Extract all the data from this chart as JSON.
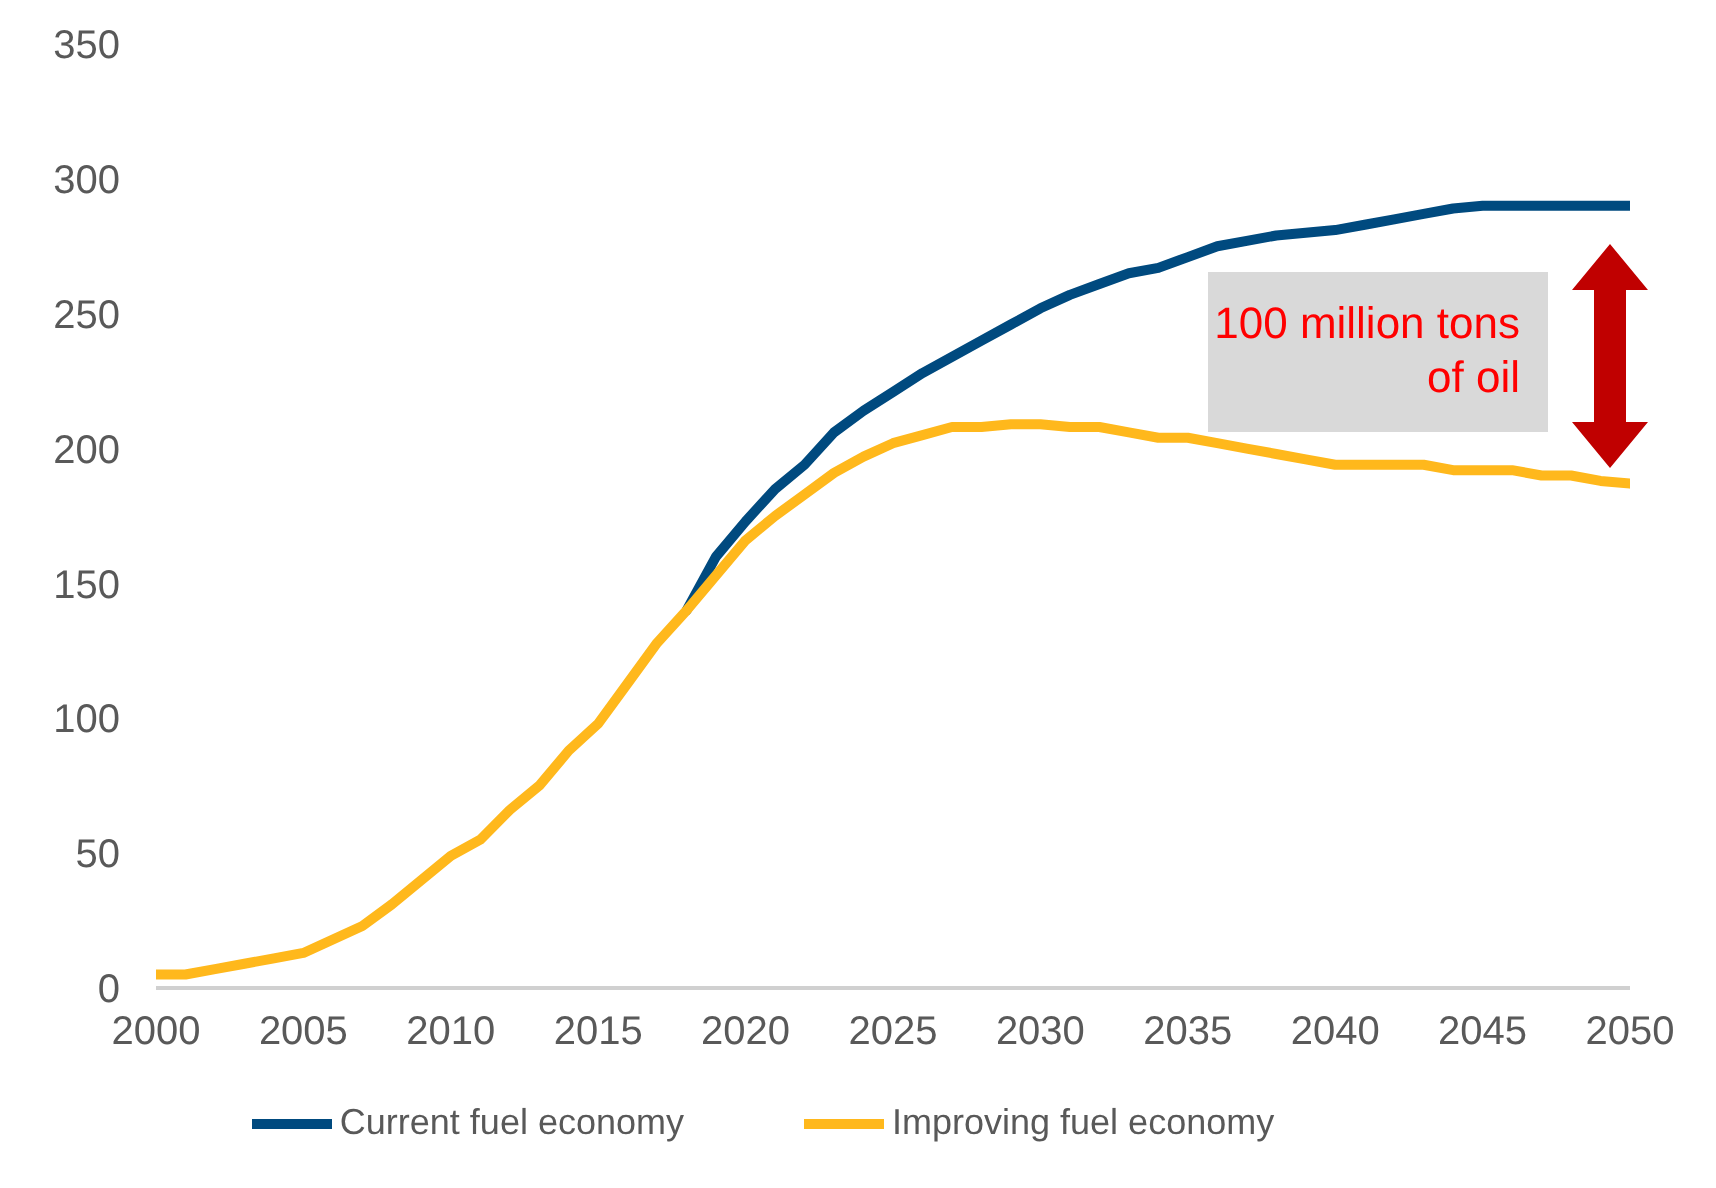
{
  "chart_data": {
    "type": "line",
    "x": [
      2000,
      2001,
      2002,
      2003,
      2004,
      2005,
      2006,
      2007,
      2008,
      2009,
      2010,
      2011,
      2012,
      2013,
      2014,
      2015,
      2016,
      2017,
      2018,
      2019,
      2020,
      2021,
      2022,
      2023,
      2024,
      2025,
      2026,
      2027,
      2028,
      2029,
      2030,
      2031,
      2032,
      2033,
      2034,
      2035,
      2036,
      2037,
      2038,
      2039,
      2040,
      2041,
      2042,
      2043,
      2044,
      2045,
      2046,
      2047,
      2048,
      2049,
      2050
    ],
    "series": [
      {
        "name": "Current fuel economy",
        "color": "#004a7f",
        "values": [
          null,
          null,
          null,
          null,
          null,
          null,
          null,
          null,
          null,
          null,
          null,
          null,
          null,
          null,
          null,
          null,
          null,
          null,
          140,
          160,
          173,
          185,
          194,
          206,
          214,
          221,
          228,
          234,
          240,
          246,
          252,
          257,
          261,
          265,
          267,
          271,
          275,
          277,
          279,
          280,
          281,
          283,
          285,
          287,
          289,
          290,
          290,
          290,
          290,
          290,
          290
        ]
      },
      {
        "name": "Improving fuel economy",
        "color": "#ffb81c",
        "values": [
          5,
          5,
          7,
          9,
          11,
          13,
          18,
          23,
          31,
          40,
          49,
          55,
          66,
          75,
          88,
          98,
          113,
          128,
          140,
          153,
          166,
          175,
          183,
          191,
          197,
          202,
          205,
          208,
          208,
          209,
          209,
          208,
          208,
          206,
          204,
          204,
          202,
          200,
          198,
          196,
          194,
          194,
          194,
          194,
          192,
          192,
          192,
          190,
          190,
          188,
          187
        ]
      }
    ],
    "xlim": [
      2000,
      2050
    ],
    "xticks": [
      2000,
      2005,
      2010,
      2015,
      2020,
      2025,
      2030,
      2035,
      2040,
      2045,
      2050
    ],
    "ylim": [
      0,
      350
    ],
    "yticks": [
      0,
      50,
      100,
      150,
      200,
      250,
      300,
      350
    ],
    "grid": false,
    "legend": "bottom",
    "marker": "none",
    "line_style": "solid",
    "annotations": [
      "100 million tons of oil"
    ]
  }
}
